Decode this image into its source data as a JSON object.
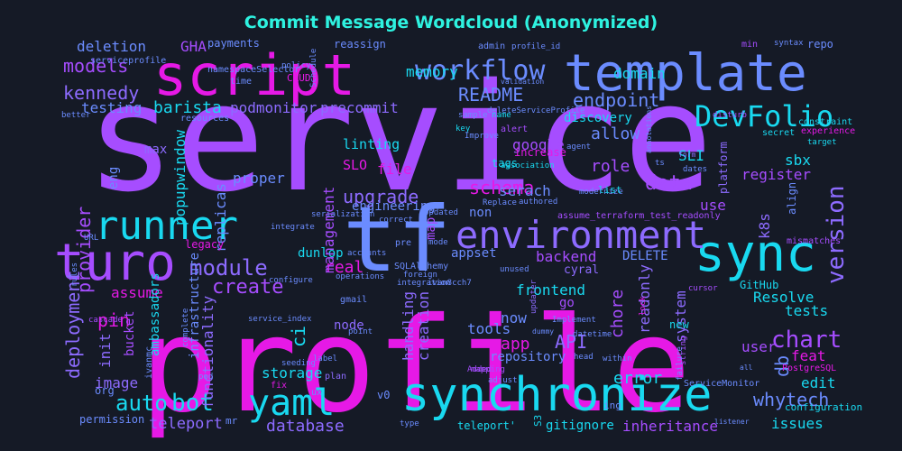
{
  "title": "Commit Message Wordcloud (Anonymized)",
  "colors": {
    "background": "#151a26",
    "title": "#2ef2e0",
    "palette": [
      "#a64dff",
      "#e619e6",
      "#6b8cff",
      "#19d9f0",
      "#8d6bff"
    ]
  },
  "words": [
    "service",
    "profile",
    "template",
    "script",
    "tf",
    "runner",
    "synchronize",
    "sync",
    "environment",
    "turo",
    "yaml",
    "workflow",
    "DevFolio",
    "module",
    "kennedy",
    "models",
    "README",
    "endpoint",
    "version",
    "chart",
    "create",
    "provider",
    "deployment",
    "bot",
    "auto",
    "pin",
    "data",
    "database",
    "whytech",
    "db",
    "teleport",
    "upgrade",
    "schema",
    "role",
    "allow",
    "barista",
    "testing",
    "podmonitor",
    "precommit",
    "domain",
    "memory",
    "deletion",
    "GHA",
    "payments",
    "reassign",
    "admin",
    "profile_id",
    "min",
    "syntax",
    "repo",
    "discovery",
    "google",
    "linting",
    "SLO",
    "file",
    "SLI",
    "sbx",
    "register",
    "use",
    "k8s",
    "Resolve",
    "tests",
    "edit",
    "feat",
    "issues",
    "inheritance",
    "gitignore",
    "error",
    "API",
    "app",
    "tools",
    "repository",
    "storage",
    "handling",
    "creation",
    "functionality",
    "image",
    "init",
    "ci",
    "real",
    "assume",
    "frontend",
    "backend",
    "readonly",
    "system",
    "chore",
    "DELETE",
    "cyral",
    "GitHub",
    "user",
    "now",
    "node",
    "go",
    "appset",
    "dunlop",
    "management",
    "engineering",
    "replicas",
    "popupwindow",
    "eng",
    "max",
    "proper",
    "serach",
    "non",
    "map",
    "tags",
    "increase",
    "alert",
    "legacy",
    "org",
    "bucket",
    "ambassadors",
    "infrastructure",
    "permission",
    "v0",
    "new",
    "ServiceMonitor",
    "PostgreSQL",
    "configuration",
    "experience",
    "target",
    "constraint",
    "secret",
    "platform",
    "align",
    "mismatches",
    "assume_terraform_test_readonly",
    "deleteServiceProfile",
    "serviceprofile",
    "namespaceSelector",
    "policy",
    "time",
    "CRUD",
    "Schedule",
    "validation",
    "better",
    "resources",
    "sample",
    "name",
    "key",
    "Improve",
    "agent",
    "annotations",
    "ts",
    "dates",
    "form",
    "disturb",
    "modernize",
    "association",
    "Replace",
    "list",
    "authored",
    "correct",
    "Updated",
    "serialization",
    "integrate",
    "URL",
    "accounts",
    "pre",
    "mode",
    "SQLAlchemy",
    "foreign",
    "integration",
    "operations",
    "ivan8cch7",
    "unused",
    "updater",
    "lock",
    "cursor",
    "configure",
    "rules",
    "cascade",
    "service_index",
    "gmail",
    "point",
    "dummy",
    "Implement",
    "datetime",
    "head",
    "within",
    "complete",
    "seeding",
    "label",
    "mapping",
    "adjust",
    "Added",
    "string",
    "failure",
    "listener",
    "type",
    "pod",
    "ivanmc",
    "ing",
    "teleport'",
    "S3",
    "mr",
    "ux",
    "all",
    "plan",
    "fix"
  ]
}
